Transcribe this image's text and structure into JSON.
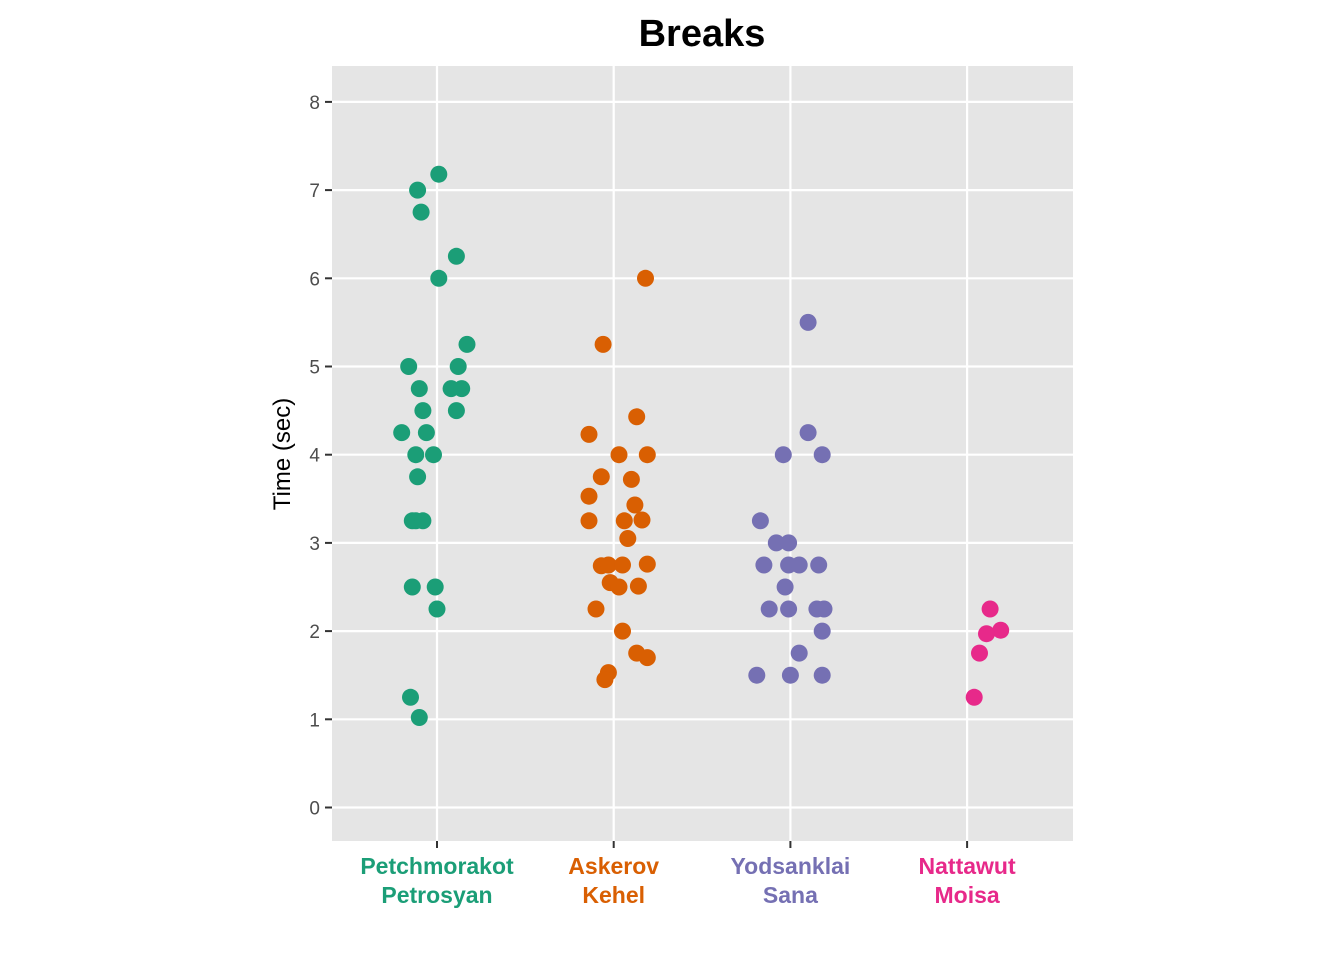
{
  "chart_data": {
    "type": "scatter",
    "title": "Breaks",
    "xlabel": "",
    "ylabel": "Time (sec)",
    "ylim": [
      -0.4,
      8.4
    ],
    "yticks": [
      "0",
      "1",
      "2",
      "3",
      "4",
      "5",
      "6",
      "7",
      "8"
    ],
    "grid": true,
    "legend": "none",
    "categories": [
      {
        "line1": "Petchmorakot",
        "line2": "Petrosyan",
        "color": "#1b9e77"
      },
      {
        "line1": "Askerov",
        "line2": "Kehel",
        "color": "#d95f02"
      },
      {
        "line1": "Yodsanklai",
        "line2": "Sana",
        "color": "#7570b3"
      },
      {
        "line1": "Nattawut",
        "line2": "Moisa",
        "color": "#e7298a"
      }
    ],
    "series": [
      {
        "category": 0,
        "points": [
          {
            "jitter": 0.01,
            "y": 7.18
          },
          {
            "jitter": -0.11,
            "y": 7.0
          },
          {
            "jitter": -0.09,
            "y": 6.75
          },
          {
            "jitter": 0.11,
            "y": 6.25
          },
          {
            "jitter": 0.01,
            "y": 6.0
          },
          {
            "jitter": 0.17,
            "y": 5.25
          },
          {
            "jitter": -0.16,
            "y": 5.0
          },
          {
            "jitter": 0.12,
            "y": 5.0
          },
          {
            "jitter": -0.1,
            "y": 4.75
          },
          {
            "jitter": 0.08,
            "y": 4.75
          },
          {
            "jitter": 0.14,
            "y": 4.75
          },
          {
            "jitter": -0.08,
            "y": 4.5
          },
          {
            "jitter": 0.11,
            "y": 4.5
          },
          {
            "jitter": -0.2,
            "y": 4.25
          },
          {
            "jitter": -0.06,
            "y": 4.25
          },
          {
            "jitter": -0.12,
            "y": 4.0
          },
          {
            "jitter": -0.02,
            "y": 4.0
          },
          {
            "jitter": -0.11,
            "y": 3.75
          },
          {
            "jitter": -0.14,
            "y": 3.25
          },
          {
            "jitter": -0.12,
            "y": 3.25
          },
          {
            "jitter": -0.08,
            "y": 3.25
          },
          {
            "jitter": -0.14,
            "y": 2.5
          },
          {
            "jitter": -0.01,
            "y": 2.5
          },
          {
            "jitter": 0.0,
            "y": 2.25
          },
          {
            "jitter": -0.15,
            "y": 1.25
          },
          {
            "jitter": -0.1,
            "y": 1.02
          }
        ]
      },
      {
        "category": 1,
        "points": [
          {
            "jitter": 0.18,
            "y": 6.0
          },
          {
            "jitter": -0.06,
            "y": 5.25
          },
          {
            "jitter": 0.13,
            "y": 4.43
          },
          {
            "jitter": -0.14,
            "y": 4.23
          },
          {
            "jitter": 0.03,
            "y": 4.0
          },
          {
            "jitter": 0.19,
            "y": 4.0
          },
          {
            "jitter": -0.07,
            "y": 3.75
          },
          {
            "jitter": 0.1,
            "y": 3.72
          },
          {
            "jitter": -0.14,
            "y": 3.53
          },
          {
            "jitter": 0.12,
            "y": 3.43
          },
          {
            "jitter": -0.14,
            "y": 3.25
          },
          {
            "jitter": 0.06,
            "y": 3.25
          },
          {
            "jitter": 0.16,
            "y": 3.26
          },
          {
            "jitter": 0.08,
            "y": 3.05
          },
          {
            "jitter": -0.07,
            "y": 2.74
          },
          {
            "jitter": -0.03,
            "y": 2.75
          },
          {
            "jitter": 0.05,
            "y": 2.75
          },
          {
            "jitter": 0.19,
            "y": 2.76
          },
          {
            "jitter": -0.02,
            "y": 2.55
          },
          {
            "jitter": 0.03,
            "y": 2.5
          },
          {
            "jitter": 0.14,
            "y": 2.51
          },
          {
            "jitter": -0.1,
            "y": 2.25
          },
          {
            "jitter": 0.05,
            "y": 2.0
          },
          {
            "jitter": 0.13,
            "y": 1.75
          },
          {
            "jitter": 0.19,
            "y": 1.7
          },
          {
            "jitter": -0.03,
            "y": 1.53
          },
          {
            "jitter": -0.05,
            "y": 1.45
          }
        ]
      },
      {
        "category": 2,
        "points": [
          {
            "jitter": 0.1,
            "y": 5.5
          },
          {
            "jitter": 0.1,
            "y": 4.25
          },
          {
            "jitter": -0.04,
            "y": 4.0
          },
          {
            "jitter": 0.18,
            "y": 4.0
          },
          {
            "jitter": -0.17,
            "y": 3.25
          },
          {
            "jitter": -0.08,
            "y": 3.0
          },
          {
            "jitter": -0.01,
            "y": 3.0
          },
          {
            "jitter": -0.15,
            "y": 2.75
          },
          {
            "jitter": -0.01,
            "y": 2.75
          },
          {
            "jitter": 0.05,
            "y": 2.75
          },
          {
            "jitter": 0.16,
            "y": 2.75
          },
          {
            "jitter": -0.03,
            "y": 2.5
          },
          {
            "jitter": -0.12,
            "y": 2.25
          },
          {
            "jitter": -0.01,
            "y": 2.25
          },
          {
            "jitter": 0.15,
            "y": 2.25
          },
          {
            "jitter": 0.19,
            "y": 2.25
          },
          {
            "jitter": 0.18,
            "y": 2.0
          },
          {
            "jitter": 0.05,
            "y": 1.75
          },
          {
            "jitter": -0.19,
            "y": 1.5
          },
          {
            "jitter": 0.0,
            "y": 1.5
          },
          {
            "jitter": 0.18,
            "y": 1.5
          }
        ]
      },
      {
        "category": 3,
        "points": [
          {
            "jitter": 0.13,
            "y": 2.25
          },
          {
            "jitter": 0.19,
            "y": 2.01
          },
          {
            "jitter": 0.11,
            "y": 1.97
          },
          {
            "jitter": 0.07,
            "y": 1.75
          },
          {
            "jitter": 0.04,
            "y": 1.25
          }
        ]
      }
    ]
  }
}
